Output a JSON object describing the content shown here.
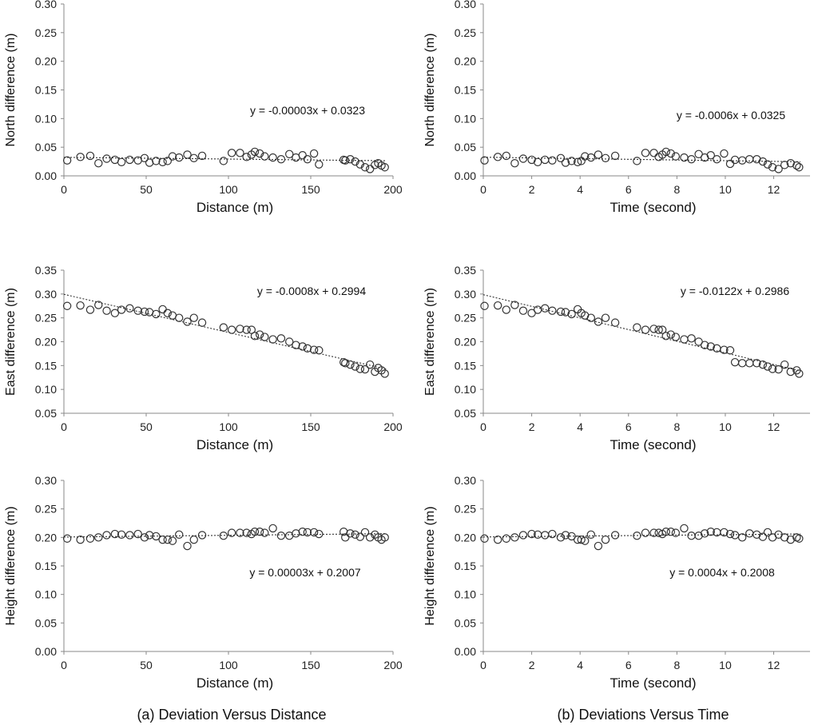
{
  "captions": {
    "a": "(a)  Deviation  Versus  Distance",
    "b": "(b)  Deviations  Versus  Time"
  },
  "chart_data": [
    {
      "id": "north-distance",
      "type": "scatter",
      "xlabel": "Distance (m)",
      "ylabel": "North difference (m)",
      "xlim": [
        0,
        200
      ],
      "ylim": [
        0,
        0.3
      ],
      "xticks": [
        0,
        50,
        100,
        150,
        200
      ],
      "xtick_labels": [
        "0",
        "50",
        "100",
        "150",
        "200"
      ],
      "yticks": [
        0,
        0.05,
        0.1,
        0.15,
        0.2,
        0.25,
        0.3
      ],
      "ytick_labels": [
        "0.00",
        "0.05",
        "0.10",
        "0.15",
        "0.20",
        "0.25",
        "0.30"
      ],
      "trendline": {
        "slope": -3e-05,
        "intercept": 0.0323,
        "x_range": [
          0,
          196
        ]
      },
      "equation": "y = -0.00003x + 0.0323",
      "x": [
        2,
        10,
        16,
        21,
        26,
        31,
        35,
        40,
        45,
        49,
        52,
        56,
        60,
        63,
        66,
        70,
        75,
        79,
        84,
        97,
        102,
        107,
        111,
        114,
        116,
        119,
        122,
        127,
        132,
        137,
        141,
        145,
        148,
        152,
        155,
        170,
        171,
        174,
        177,
        180,
        183,
        186,
        189,
        191,
        193,
        195
      ],
      "y": [
        0.027,
        0.033,
        0.035,
        0.022,
        0.03,
        0.028,
        0.024,
        0.028,
        0.027,
        0.031,
        0.023,
        0.026,
        0.024,
        0.026,
        0.034,
        0.032,
        0.037,
        0.031,
        0.035,
        0.026,
        0.04,
        0.04,
        0.033,
        0.037,
        0.042,
        0.039,
        0.034,
        0.032,
        0.029,
        0.038,
        0.032,
        0.036,
        0.029,
        0.039,
        0.02,
        0.028,
        0.027,
        0.029,
        0.025,
        0.02,
        0.015,
        0.012,
        0.019,
        0.022,
        0.018,
        0.015
      ]
    },
    {
      "id": "north-time",
      "type": "scatter",
      "xlabel": "Time (second)",
      "ylabel": "North difference (m)",
      "xlim": [
        0,
        13.5
      ],
      "ylim": [
        0,
        0.3
      ],
      "xticks": [
        0,
        2,
        4,
        6,
        8,
        10,
        12
      ],
      "xtick_labels": [
        "0",
        "2",
        "4",
        "6",
        "8",
        "10",
        "12"
      ],
      "yticks": [
        0,
        0.05,
        0.1,
        0.15,
        0.2,
        0.25,
        0.3
      ],
      "ytick_labels": [
        "0.00",
        "0.05",
        "0.10",
        "0.15",
        "0.20",
        "0.25",
        "0.30"
      ],
      "trendline": {
        "slope": -0.0006,
        "intercept": 0.0325,
        "x_range": [
          0,
          13.1
        ]
      },
      "equation": "y = -0.0006x + 0.0325",
      "x": [
        0.05,
        0.6,
        0.95,
        1.3,
        1.65,
        2.0,
        2.25,
        2.55,
        2.85,
        3.2,
        3.4,
        3.65,
        3.9,
        4.05,
        4.2,
        4.45,
        4.75,
        5.05,
        5.45,
        6.35,
        6.7,
        7.05,
        7.25,
        7.4,
        7.55,
        7.75,
        7.95,
        8.3,
        8.6,
        8.9,
        9.15,
        9.4,
        9.65,
        9.95,
        10.2,
        10.4,
        10.7,
        11.0,
        11.3,
        11.55,
        11.75,
        11.95,
        12.2,
        12.45,
        12.7,
        12.95,
        13.05
      ],
      "y": [
        0.027,
        0.033,
        0.035,
        0.022,
        0.03,
        0.028,
        0.024,
        0.028,
        0.027,
        0.031,
        0.023,
        0.026,
        0.024,
        0.026,
        0.034,
        0.032,
        0.037,
        0.031,
        0.035,
        0.026,
        0.04,
        0.04,
        0.033,
        0.037,
        0.042,
        0.039,
        0.034,
        0.032,
        0.029,
        0.038,
        0.032,
        0.036,
        0.029,
        0.039,
        0.021,
        0.028,
        0.027,
        0.029,
        0.029,
        0.025,
        0.02,
        0.015,
        0.012,
        0.019,
        0.022,
        0.018,
        0.015
      ]
    },
    {
      "id": "east-distance",
      "type": "scatter",
      "xlabel": "Distance (m)",
      "ylabel": "East difference (m)",
      "xlim": [
        0,
        200
      ],
      "ylim": [
        0.05,
        0.35
      ],
      "xticks": [
        0,
        50,
        100,
        150,
        200
      ],
      "xtick_labels": [
        "0",
        "50",
        "100",
        "150",
        "200"
      ],
      "yticks": [
        0.05,
        0.1,
        0.15,
        0.2,
        0.25,
        0.3,
        0.35
      ],
      "ytick_labels": [
        "0.05",
        "0.10",
        "0.15",
        "0.20",
        "0.25",
        "0.30",
        "0.35"
      ],
      "trendline": {
        "slope": -0.0008,
        "intercept": 0.2994,
        "x_range": [
          0,
          196
        ]
      },
      "equation": "y = -0.0008x + 0.2994",
      "x": [
        2,
        10,
        16,
        21,
        26,
        31,
        35,
        40,
        45,
        49,
        52,
        56,
        60,
        63,
        66,
        70,
        75,
        79,
        84,
        97,
        102,
        107,
        111,
        114,
        116,
        119,
        122,
        127,
        132,
        137,
        141,
        145,
        148,
        152,
        155,
        170,
        171,
        174,
        177,
        180,
        183,
        186,
        189,
        191,
        193,
        195
      ],
      "y": [
        0.275,
        0.276,
        0.267,
        0.277,
        0.265,
        0.26,
        0.267,
        0.27,
        0.265,
        0.263,
        0.262,
        0.258,
        0.268,
        0.26,
        0.255,
        0.25,
        0.242,
        0.25,
        0.24,
        0.23,
        0.225,
        0.227,
        0.225,
        0.225,
        0.212,
        0.215,
        0.21,
        0.205,
        0.207,
        0.2,
        0.193,
        0.19,
        0.186,
        0.183,
        0.182,
        0.157,
        0.155,
        0.152,
        0.148,
        0.143,
        0.142,
        0.152,
        0.137,
        0.145,
        0.14,
        0.133
      ]
    },
    {
      "id": "east-time",
      "type": "scatter",
      "xlabel": "Time (second)",
      "ylabel": "East difference (m)",
      "xlim": [
        0,
        13.5
      ],
      "ylim": [
        0.05,
        0.35
      ],
      "xticks": [
        0,
        2,
        4,
        6,
        8,
        10,
        12
      ],
      "xtick_labels": [
        "0",
        "2",
        "4",
        "6",
        "8",
        "10",
        "12"
      ],
      "yticks": [
        0.05,
        0.1,
        0.15,
        0.2,
        0.25,
        0.3,
        0.35
      ],
      "ytick_labels": [
        "0.05",
        "0.10",
        "0.15",
        "0.20",
        "0.25",
        "0.30",
        "0.35"
      ],
      "trendline": {
        "slope": -0.0122,
        "intercept": 0.2986,
        "x_range": [
          0,
          13.1
        ]
      },
      "equation": "y = -0.0122x + 0.2986",
      "x": [
        0.05,
        0.6,
        0.95,
        1.3,
        1.65,
        2.0,
        2.25,
        2.55,
        2.85,
        3.2,
        3.4,
        3.65,
        3.9,
        4.05,
        4.2,
        4.45,
        4.75,
        5.05,
        5.45,
        6.35,
        6.7,
        7.05,
        7.25,
        7.4,
        7.55,
        7.75,
        7.95,
        8.3,
        8.6,
        8.9,
        9.15,
        9.4,
        9.65,
        9.95,
        10.2,
        10.4,
        10.7,
        11.0,
        11.3,
        11.55,
        11.75,
        11.95,
        12.2,
        12.45,
        12.7,
        12.95,
        13.05
      ],
      "y": [
        0.275,
        0.276,
        0.267,
        0.277,
        0.265,
        0.26,
        0.267,
        0.27,
        0.265,
        0.263,
        0.262,
        0.258,
        0.268,
        0.26,
        0.255,
        0.25,
        0.242,
        0.25,
        0.24,
        0.23,
        0.225,
        0.227,
        0.225,
        0.225,
        0.212,
        0.215,
        0.21,
        0.205,
        0.207,
        0.2,
        0.193,
        0.19,
        0.186,
        0.183,
        0.182,
        0.157,
        0.155,
        0.155,
        0.155,
        0.152,
        0.148,
        0.143,
        0.142,
        0.152,
        0.137,
        0.14,
        0.133
      ]
    },
    {
      "id": "height-distance",
      "type": "scatter",
      "xlabel": "Distance (m)",
      "ylabel": "Height difference (m)",
      "xlim": [
        0,
        200
      ],
      "ylim": [
        0,
        0.3
      ],
      "xticks": [
        0,
        50,
        100,
        150,
        200
      ],
      "xtick_labels": [
        "0",
        "50",
        "100",
        "150",
        "200"
      ],
      "yticks": [
        0,
        0.05,
        0.1,
        0.15,
        0.2,
        0.25,
        0.3
      ],
      "ytick_labels": [
        "0.00",
        "0.05",
        "0.10",
        "0.15",
        "0.20",
        "0.25",
        "0.30"
      ],
      "trendline": {
        "slope": 3e-05,
        "intercept": 0.2007,
        "x_range": [
          0,
          196
        ]
      },
      "equation": "y = 0.00003x + 0.2007",
      "x": [
        2,
        10,
        16,
        21,
        26,
        31,
        35,
        40,
        45,
        49,
        52,
        56,
        60,
        63,
        66,
        70,
        75,
        79,
        84,
        97,
        102,
        107,
        111,
        114,
        116,
        119,
        122,
        127,
        132,
        137,
        141,
        145,
        148,
        152,
        155,
        170,
        171,
        174,
        177,
        180,
        183,
        186,
        189,
        191,
        193,
        195
      ],
      "y": [
        0.198,
        0.196,
        0.198,
        0.2,
        0.204,
        0.206,
        0.205,
        0.204,
        0.206,
        0.2,
        0.204,
        0.202,
        0.196,
        0.196,
        0.194,
        0.205,
        0.185,
        0.196,
        0.204,
        0.203,
        0.208,
        0.208,
        0.208,
        0.206,
        0.21,
        0.21,
        0.208,
        0.216,
        0.203,
        0.203,
        0.207,
        0.21,
        0.209,
        0.209,
        0.206,
        0.21,
        0.2,
        0.207,
        0.205,
        0.201,
        0.209,
        0.2,
        0.205,
        0.2,
        0.196,
        0.2
      ]
    },
    {
      "id": "height-time",
      "type": "scatter",
      "xlabel": "Time (second)",
      "ylabel": "Height difference (m)",
      "xlim": [
        0,
        13.5
      ],
      "ylim": [
        0,
        0.3
      ],
      "xticks": [
        0,
        2,
        4,
        6,
        8,
        10,
        12
      ],
      "xtick_labels": [
        "0",
        "2",
        "4",
        "6",
        "8",
        "10",
        "12"
      ],
      "yticks": [
        0,
        0.05,
        0.1,
        0.15,
        0.2,
        0.25,
        0.3
      ],
      "ytick_labels": [
        "0.00",
        "0.05",
        "0.10",
        "0.15",
        "0.20",
        "0.25",
        "0.30"
      ],
      "trendline": {
        "slope": 0.0004,
        "intercept": 0.2008,
        "x_range": [
          0,
          13.1
        ]
      },
      "equation": "y = 0.0004x + 0.2008",
      "x": [
        0.05,
        0.6,
        0.95,
        1.3,
        1.65,
        2.0,
        2.25,
        2.55,
        2.85,
        3.2,
        3.4,
        3.65,
        3.9,
        4.05,
        4.2,
        4.45,
        4.75,
        5.05,
        5.45,
        6.35,
        6.7,
        7.05,
        7.25,
        7.4,
        7.55,
        7.75,
        7.95,
        8.3,
        8.6,
        8.9,
        9.15,
        9.4,
        9.65,
        9.95,
        10.2,
        10.4,
        10.7,
        11.0,
        11.3,
        11.55,
        11.75,
        11.95,
        12.2,
        12.45,
        12.7,
        12.95,
        13.05
      ],
      "y": [
        0.198,
        0.196,
        0.198,
        0.2,
        0.204,
        0.206,
        0.205,
        0.204,
        0.206,
        0.2,
        0.204,
        0.202,
        0.196,
        0.196,
        0.194,
        0.205,
        0.185,
        0.196,
        0.204,
        0.203,
        0.208,
        0.208,
        0.208,
        0.206,
        0.21,
        0.21,
        0.208,
        0.216,
        0.203,
        0.203,
        0.207,
        0.21,
        0.209,
        0.209,
        0.206,
        0.204,
        0.2,
        0.207,
        0.205,
        0.201,
        0.209,
        0.2,
        0.205,
        0.2,
        0.196,
        0.2,
        0.198
      ]
    }
  ]
}
